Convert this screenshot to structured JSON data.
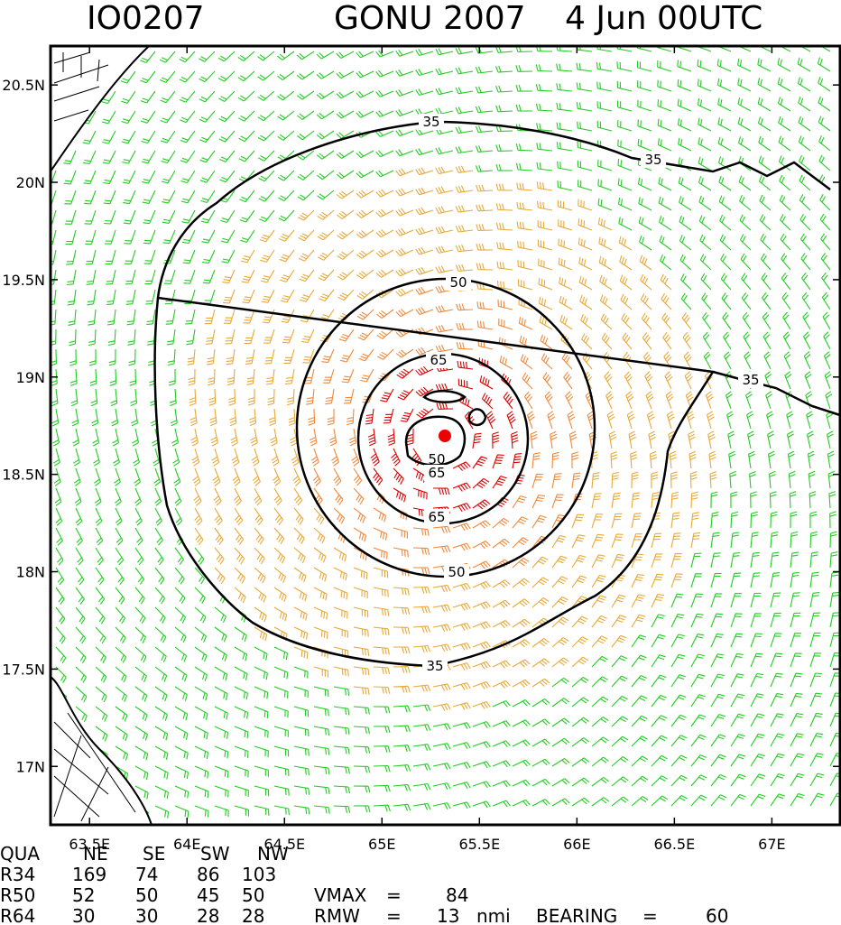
{
  "title": {
    "storm_id": "IO0207",
    "storm_name": "GONU 2007",
    "time": "4 Jun 00UTC"
  },
  "map": {
    "lon_range": [
      63.3,
      67.35
    ],
    "lat_range": [
      16.7,
      20.7
    ],
    "center": {
      "lon": 65.33,
      "lat": 18.69
    },
    "lon_ticks": [
      "63.5E",
      "64E",
      "64.5E",
      "65E",
      "65.5E",
      "66E",
      "66.5E",
      "67E"
    ],
    "lat_ticks": [
      "17N",
      "17.5N",
      "18N",
      "18.5N",
      "19N",
      "19.5N",
      "20N",
      "20.5N"
    ],
    "contour_labels": {
      "c35": "35",
      "c50": "50",
      "c65": "65",
      "c50_inner": "50"
    },
    "colors": {
      "ring_above_64": "#dd0000",
      "ring_50_64": "#f0883a",
      "ring_34_50": "#e8a838",
      "below_34": "#22cc22",
      "land": "#000000",
      "center_marker": "#ee0000"
    }
  },
  "table": {
    "header": [
      "QUA",
      "NE",
      "SE",
      "SW",
      "NW"
    ],
    "rows": [
      [
        "R34",
        "169",
        "74",
        "86",
        "103"
      ],
      [
        "R50",
        "52",
        "50",
        "45",
        "50"
      ],
      [
        "R64",
        "30",
        "30",
        "28",
        "28"
      ]
    ],
    "vmax_label": "VMAX",
    "vmax_eq": "=",
    "vmax_value": "84",
    "rmw_label": "RMW",
    "rmw_eq": "=",
    "rmw_value": "13",
    "rmw_unit": "nmi",
    "bearing_label": "BEARING",
    "bearing_eq": "=",
    "bearing_value": "60"
  }
}
